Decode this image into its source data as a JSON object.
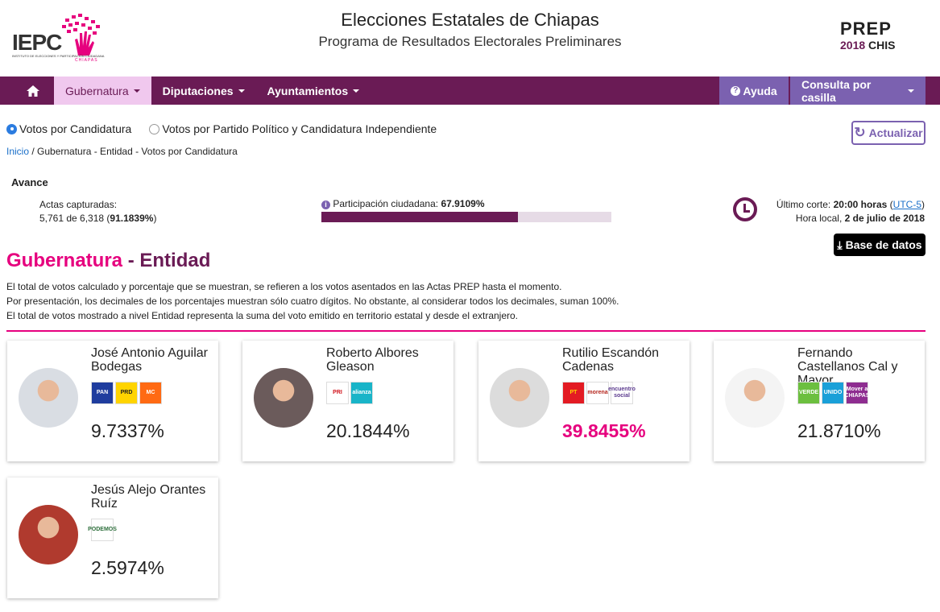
{
  "header": {
    "logo_text": "IEPC",
    "logo_sub": "INSTITUTO DE ELECCIONES Y PARTICIPACIÓN CIUDADANA",
    "logo_state": "CHIAPAS",
    "title": "Elecciones Estatales de Chiapas",
    "subtitle": "Programa de Resultados Electorales Preliminares",
    "prep_logo": "PREP",
    "prep_year": "2018",
    "prep_state": "CHIS"
  },
  "nav": {
    "items": [
      {
        "label": "Gubernatura"
      },
      {
        "label": "Diputaciones"
      },
      {
        "label": "Ayuntamientos"
      }
    ],
    "help": "Ayuda",
    "consulta": "Consulta por casilla"
  },
  "view": {
    "option1": "Votos por Candidatura",
    "option2": "Votos por Partido Político y Candidatura Independiente",
    "refresh": "Actualizar"
  },
  "breadcrumb": {
    "home": "Inicio",
    "rest": " / Gubernatura - Entidad -  Votos por Candidatura"
  },
  "avance": {
    "title": "Avance",
    "actas_label": "Actas capturadas:",
    "actas_count": "5,761 de 6,318 (",
    "actas_pct": "91.1839%",
    "actas_close": ")",
    "participacion_label": "Participación ciudadana: ",
    "participacion_value": "67.9109%",
    "participacion_fraction": 0.679109,
    "corte_label": "Último corte: ",
    "corte_time": "20:00 horas",
    "corte_tz": "UTC-5",
    "local_label": "Hora local, ",
    "local_date": "2 de julio de 2018",
    "db_button": "Base de datos"
  },
  "section": {
    "title_a": "Gubernatura",
    "sep": " - ",
    "title_b": "Entidad",
    "notes": [
      "El total de votos calculado y porcentaje que se muestran, se refieren a los votos asentados en las Actas PREP hasta el momento.",
      "Por presentación, los decimales de los porcentajes muestran sólo cuatro dígitos. No obstante, al considerar todos los decimales, suman 100%.",
      "El total de votos mostrado a nivel Entidad representa la suma del voto emitido en territorio estatal y desde el extranjero."
    ]
  },
  "candidates": [
    {
      "name": "José Antonio Aguilar Bodegas",
      "pct": "9.7337%",
      "parties": [
        {
          "label": "PAN",
          "bg": "#1f3d9e",
          "fg": "#fff"
        },
        {
          "label": "PRD",
          "bg": "#ffd400",
          "fg": "#222"
        },
        {
          "label": "MC",
          "bg": "#ff6a13",
          "fg": "#fff"
        }
      ]
    },
    {
      "name": "Roberto Albores Gleason",
      "pct": "20.1844%",
      "parties": [
        {
          "label": "PRI",
          "bg": "#fff",
          "fg": "#d1121b"
        },
        {
          "label": "alianza",
          "bg": "#19b4c8",
          "fg": "#fff"
        }
      ]
    },
    {
      "name": "Rutilio Escandón Cadenas",
      "pct": "39.8455%",
      "parties": [
        {
          "label": "PT",
          "bg": "#e31b23",
          "fg": "#ffd400"
        },
        {
          "label": "morena",
          "bg": "#fff",
          "fg": "#b5261e"
        },
        {
          "label": "encuentro social",
          "bg": "#fff",
          "fg": "#5b3a8e"
        }
      ]
    },
    {
      "name": "Fernando Castellanos Cal y Mayor",
      "pct": "21.8710%",
      "parties": [
        {
          "label": "VERDE",
          "bg": "#6cbf3f",
          "fg": "#fff"
        },
        {
          "label": "UNIDO",
          "bg": "#1aa0d8",
          "fg": "#fff"
        },
        {
          "label": "Mover a CHIAPAS",
          "bg": "#8e2d90",
          "fg": "#fff"
        }
      ]
    },
    {
      "name": "Jesús Alejo Orantes Ruíz",
      "pct": "2.5974%",
      "parties": [
        {
          "label": "PODEMOS",
          "bg": "#fff",
          "fg": "#2c6e3a"
        }
      ]
    }
  ],
  "colors": {
    "primary": "#6a1b55",
    "accent": "#e6007e",
    "secondary": "#7b61b0"
  }
}
